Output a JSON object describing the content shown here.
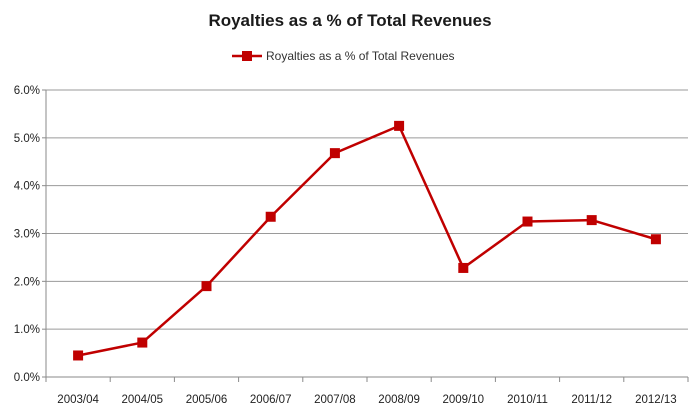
{
  "chart_data": {
    "type": "line",
    "title": "Royalties as a % of Total Revenues",
    "legend_position": "top-center",
    "grid": true,
    "xlabel": "",
    "ylabel": "",
    "ylim": [
      0,
      6
    ],
    "yticks": [
      "0.0%",
      "1.0%",
      "2.0%",
      "3.0%",
      "4.0%",
      "5.0%",
      "6.0%"
    ],
    "categories": [
      "2003/04",
      "2004/05",
      "2005/06",
      "2006/07",
      "2007/08",
      "2008/09",
      "2009/10",
      "2010/11",
      "2011/12",
      "2012/13"
    ],
    "series": [
      {
        "name": "Royalties as a % of Total Revenues",
        "color": "#c00000",
        "values": [
          0.45,
          0.72,
          1.9,
          3.35,
          4.68,
          5.25,
          2.28,
          3.25,
          3.28,
          2.88
        ]
      }
    ]
  }
}
